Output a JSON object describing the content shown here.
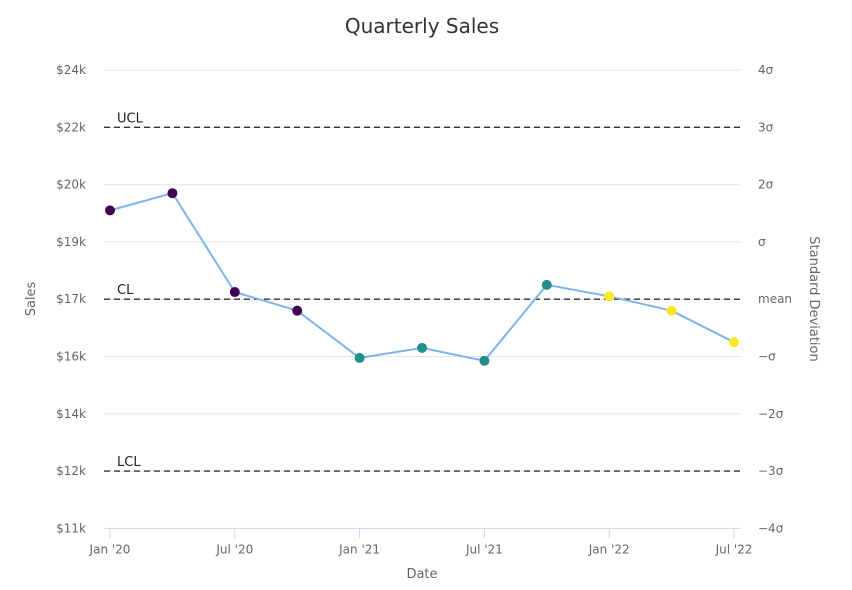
{
  "chart_data": {
    "type": "line",
    "title": "Quarterly Sales",
    "xlabel": "Date",
    "ylabel": "Sales",
    "y2label": "Standard Deviation",
    "x_ticks": [
      "Jan '20",
      "Jul '20",
      "Jan '21",
      "Jul '21",
      "Jan '22",
      "Jul '22"
    ],
    "y_ticks": [
      {
        "value": 11000,
        "label": "$11k"
      },
      {
        "value": 12000,
        "label": "$12k"
      },
      {
        "value": 14000,
        "label": "$14k"
      },
      {
        "value": 16000,
        "label": "$16k"
      },
      {
        "value": 17000,
        "label": "$17k"
      },
      {
        "value": 19000,
        "label": "$19k"
      },
      {
        "value": 20000,
        "label": "$20k"
      },
      {
        "value": 22000,
        "label": "$22k"
      },
      {
        "value": 24000,
        "label": "$24k"
      }
    ],
    "y2_ticks": [
      "4σ",
      "3σ",
      "2σ",
      "σ",
      "mean",
      "−σ",
      "−2σ",
      "−3σ",
      "−4σ"
    ],
    "control_lines": [
      {
        "label": "UCL",
        "value": 22000
      },
      {
        "label": "CL",
        "value": 17000
      },
      {
        "label": "LCL",
        "value": 12000
      }
    ],
    "line_color": "#7cb5ec",
    "x": [
      "Jan '20",
      "Apr '20",
      "Jul '20",
      "Oct '20",
      "Jan '21",
      "Apr '21",
      "Jul '21",
      "Oct '21",
      "Jan '22",
      "Apr '22",
      "Jul '22"
    ],
    "values": [
      19550,
      19850,
      17250,
      16800,
      15950,
      16150,
      15850,
      17500,
      17100,
      16800,
      16250
    ],
    "point_colors": [
      "#440154",
      "#440154",
      "#440154",
      "#440154",
      "#21908d",
      "#21908d",
      "#21908d",
      "#21908d",
      "#fde725",
      "#fde725",
      "#fde725"
    ],
    "grid": true
  }
}
